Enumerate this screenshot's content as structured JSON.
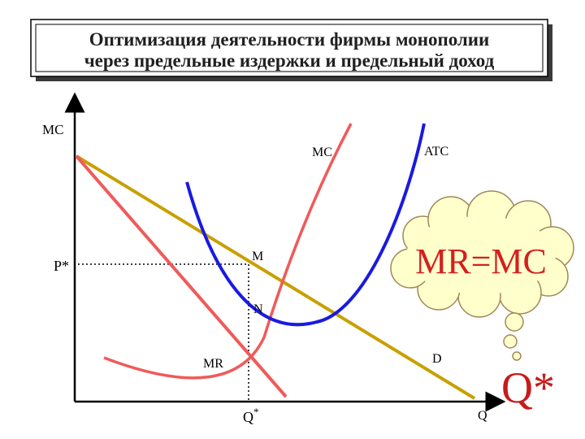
{
  "title": {
    "line1": "Оптимизация деятельности фирмы монополии",
    "line2": "через предельные издержки и предельный доход"
  },
  "axes": {
    "y_label": "MC",
    "x_label": "Q"
  },
  "labels": {
    "p_star": "P*",
    "q_star": "Q",
    "q_star_sup": "*",
    "point_m": "M",
    "point_n": "N",
    "curve_mc": "MC",
    "curve_atc": "ATC",
    "curve_mr": "MR",
    "curve_d": "D"
  },
  "thought": {
    "equation": "MR=MC",
    "answer": "Q*"
  },
  "colors": {
    "mc": "#f05a5a",
    "atc": "#1a1ae0",
    "demand": "#c8a000",
    "mr": "#f05a5a",
    "cloud_fill": "#ffffcc",
    "cloud_stroke": "#a08858",
    "equation_text": "#d42020",
    "answer_text": "#c81a1a"
  }
}
